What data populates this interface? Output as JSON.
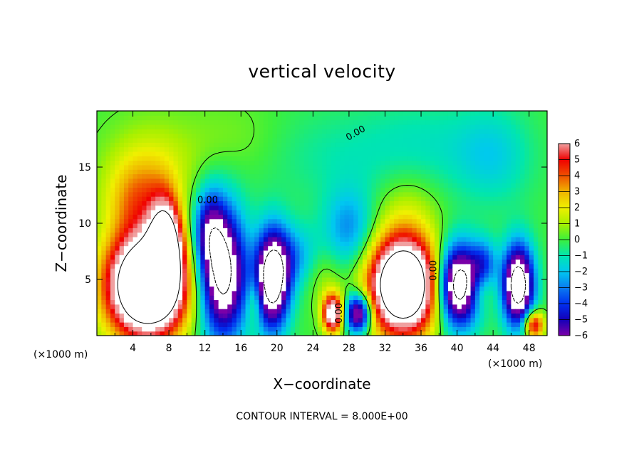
{
  "chart_data": {
    "type": "heatmap",
    "title": "vertical velocity",
    "xlabel": "X−coordinate",
    "ylabel": "Z−coordinate",
    "x_unit_label": "(×1000 m)",
    "y_unit_label": "(×1000 m)",
    "xlim": [
      0,
      50
    ],
    "ylim": [
      0,
      20
    ],
    "x_ticks": [
      4,
      8,
      12,
      16,
      20,
      24,
      28,
      32,
      36,
      40,
      44,
      48
    ],
    "y_ticks": [
      5,
      10,
      15
    ],
    "colorbar": {
      "min": -6,
      "max": 6,
      "ticks": [
        "6",
        "5",
        "4",
        "3",
        "2",
        "1",
        "0",
        "−1",
        "−2",
        "−3",
        "−4",
        "−5",
        "−6"
      ],
      "colors": [
        {
          "value": -6,
          "color": "#7a00a8"
        },
        {
          "value": -5,
          "color": "#1400b8"
        },
        {
          "value": -4,
          "color": "#0030f0"
        },
        {
          "value": -3,
          "color": "#0a7cf0"
        },
        {
          "value": -2,
          "color": "#00c8f0"
        },
        {
          "value": -1,
          "color": "#00e6b0"
        },
        {
          "value": 0,
          "color": "#3cf03c"
        },
        {
          "value": 1,
          "color": "#a8f000"
        },
        {
          "value": 2,
          "color": "#f0f000"
        },
        {
          "value": 3,
          "color": "#f0b400"
        },
        {
          "value": 4,
          "color": "#f05000"
        },
        {
          "value": 5,
          "color": "#f00000"
        },
        {
          "value": 6,
          "color": "#f0a0a0"
        }
      ],
      "saturated_color": "#ffffff"
    },
    "contour_labels": [
      "0.00",
      "0.00",
      "0.00",
      "0.00"
    ],
    "features": [
      {
        "x": 5.5,
        "z": 4.5,
        "sx": 3.0,
        "sz": 3.2,
        "w": 14
      },
      {
        "x": 7.6,
        "z": 8.0,
        "sx": 1.2,
        "sz": 2.8,
        "w": 9
      },
      {
        "x": 4.5,
        "z": 12.0,
        "sx": 2.5,
        "sz": 2.5,
        "w": 2.6
      },
      {
        "x": 6.0,
        "z": 15.0,
        "sx": 3.5,
        "sz": 3.0,
        "w": 1.6
      },
      {
        "x": 14.0,
        "z": 5.5,
        "sx": 1.8,
        "sz": 4.0,
        "w": -9
      },
      {
        "x": 12.5,
        "z": 9.5,
        "sx": 1.2,
        "sz": 2.5,
        "w": -4
      },
      {
        "x": 19.5,
        "z": 5.0,
        "sx": 1.3,
        "sz": 3.0,
        "w": -10
      },
      {
        "x": 17.5,
        "z": 3.0,
        "sx": 0.6,
        "sz": 1.5,
        "w": 2
      },
      {
        "x": 22.0,
        "z": 7.0,
        "sx": 2.0,
        "sz": 2.0,
        "w": -2.5
      },
      {
        "x": 26.2,
        "z": 2.0,
        "sx": 0.8,
        "sz": 1.2,
        "w": 8
      },
      {
        "x": 29.0,
        "z": 2.0,
        "sx": 1.0,
        "sz": 1.2,
        "w": -8
      },
      {
        "x": 25.0,
        "z": 5.5,
        "sx": 1.5,
        "sz": 2.0,
        "w": 1.2
      },
      {
        "x": 28.0,
        "z": 9.5,
        "sx": 2.0,
        "sz": 2.5,
        "w": -2.8
      },
      {
        "x": 34.0,
        "z": 4.5,
        "sx": 2.6,
        "sz": 3.0,
        "w": 13
      },
      {
        "x": 34.5,
        "z": 11.5,
        "sx": 2.5,
        "sz": 2.5,
        "w": 1.0
      },
      {
        "x": 40.2,
        "z": 4.5,
        "sx": 1.6,
        "sz": 2.5,
        "w": -10
      },
      {
        "x": 43.0,
        "z": 6.5,
        "sx": 1.0,
        "sz": 1.5,
        "w": -3
      },
      {
        "x": 42.5,
        "z": 4.0,
        "sx": 1.0,
        "sz": 1.2,
        "w": 1.5
      },
      {
        "x": 46.8,
        "z": 4.5,
        "sx": 1.2,
        "sz": 2.5,
        "w": -10
      },
      {
        "x": 48.5,
        "z": 1.0,
        "sx": 0.8,
        "sz": 0.9,
        "w": 6
      },
      {
        "x": 44.0,
        "z": 16.0,
        "sx": 3.0,
        "sz": 3.0,
        "w": -1.6
      },
      {
        "x": 26.0,
        "z": 16.0,
        "sx": 6.0,
        "sz": 3.0,
        "w": -0.8
      },
      {
        "x": 36.5,
        "z": 17.0,
        "sx": 5.0,
        "sz": 3.0,
        "w": -1.0
      },
      {
        "x": 15.0,
        "z": 17.5,
        "sx": 4.0,
        "sz": 2.5,
        "w": 0.6
      }
    ]
  },
  "footer": {
    "text": "CONTOUR INTERVAL = 8.000E+00"
  }
}
